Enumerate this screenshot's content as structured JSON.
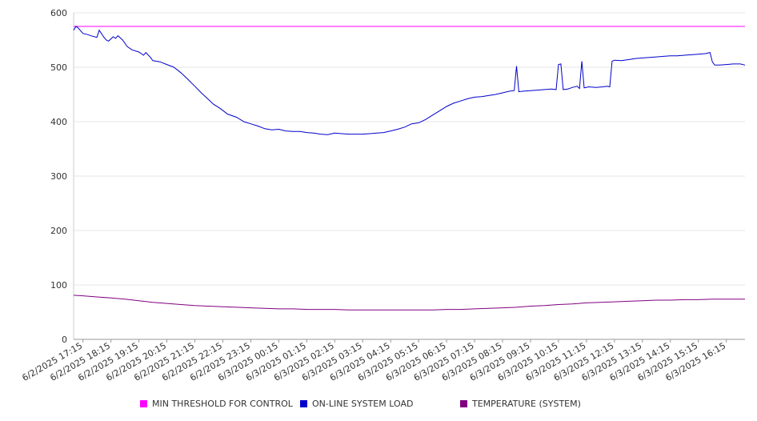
{
  "chart_data": {
    "type": "line",
    "ylim": [
      0,
      600
    ],
    "yticks": [
      0,
      100,
      200,
      300,
      400,
      500,
      600
    ],
    "grid": true,
    "legend_position": "bottom",
    "xticks": [
      "6/2/2025 17:15",
      "6/2/2025 18:15",
      "6/2/2025 19:15",
      "6/2/2025 20:15",
      "6/2/2025 21:15",
      "6/2/2025 22:15",
      "6/2/2025 23:15",
      "6/3/2025 00:15",
      "6/3/2025 01:15",
      "6/3/2025 02:15",
      "6/3/2025 03:15",
      "6/3/2025 04:15",
      "6/3/2025 05:15",
      "6/3/2025 06:15",
      "6/3/2025 07:15",
      "6/3/2025 08:15",
      "6/3/2025 09:15",
      "6/3/2025 10:15",
      "6/3/2025 11:15",
      "6/3/2025 12:15",
      "6/3/2025 13:15",
      "6/3/2025 14:15",
      "6/3/2025 15:15",
      "6/3/2025 16:15"
    ],
    "series": [
      {
        "name": "MIN THRESHOLD FOR CONTROL",
        "color": "#ff00ff",
        "points": [
          [
            "6/2/2025 16:55",
            575
          ],
          [
            "6/3/2025 16:55",
            575
          ]
        ]
      },
      {
        "name": "ON-LINE SYSTEM LOAD",
        "color": "#0000cc",
        "points": [
          [
            "6/2/2025 16:55",
            568
          ],
          [
            "6/2/2025 17:00",
            575
          ],
          [
            "6/2/2025 17:05",
            572
          ],
          [
            "6/2/2025 17:10",
            567
          ],
          [
            "6/2/2025 17:15",
            562
          ],
          [
            "6/2/2025 17:25",
            560
          ],
          [
            "6/2/2025 17:35",
            557
          ],
          [
            "6/2/2025 17:45",
            555
          ],
          [
            "6/2/2025 17:50",
            568
          ],
          [
            "6/2/2025 18:00",
            555
          ],
          [
            "6/2/2025 18:05",
            550
          ],
          [
            "6/2/2025 18:10",
            548
          ],
          [
            "6/2/2025 18:15",
            552
          ],
          [
            "6/2/2025 18:20",
            556
          ],
          [
            "6/2/2025 18:25",
            553
          ],
          [
            "6/2/2025 18:30",
            558
          ],
          [
            "6/2/2025 18:40",
            550
          ],
          [
            "6/2/2025 18:50",
            538
          ],
          [
            "6/2/2025 19:00",
            532
          ],
          [
            "6/2/2025 19:15",
            528
          ],
          [
            "6/2/2025 19:25",
            522
          ],
          [
            "6/2/2025 19:30",
            527
          ],
          [
            "6/2/2025 19:40",
            518
          ],
          [
            "6/2/2025 19:45",
            512
          ],
          [
            "6/2/2025 20:00",
            510
          ],
          [
            "6/2/2025 20:15",
            505
          ],
          [
            "6/2/2025 20:30",
            500
          ],
          [
            "6/2/2025 20:45",
            490
          ],
          [
            "6/2/2025 21:00",
            478
          ],
          [
            "6/2/2025 21:15",
            465
          ],
          [
            "6/2/2025 21:30",
            452
          ],
          [
            "6/2/2025 21:45",
            440
          ],
          [
            "6/2/2025 21:55",
            432
          ],
          [
            "6/2/2025 22:10",
            424
          ],
          [
            "6/2/2025 22:25",
            414
          ],
          [
            "6/2/2025 22:45",
            408
          ],
          [
            "6/2/2025 23:00",
            400
          ],
          [
            "6/2/2025 23:15",
            396
          ],
          [
            "6/2/2025 23:30",
            392
          ],
          [
            "6/2/2025 23:45",
            387
          ],
          [
            "6/3/2025 00:00",
            385
          ],
          [
            "6/3/2025 00:15",
            386
          ],
          [
            "6/3/2025 00:30",
            383
          ],
          [
            "6/3/2025 00:45",
            382
          ],
          [
            "6/3/2025 01:00",
            382
          ],
          [
            "6/3/2025 01:15",
            380
          ],
          [
            "6/3/2025 01:30",
            379
          ],
          [
            "6/3/2025 01:45",
            377
          ],
          [
            "6/3/2025 02:00",
            376
          ],
          [
            "6/3/2025 02:15",
            379
          ],
          [
            "6/3/2025 02:30",
            378
          ],
          [
            "6/3/2025 02:45",
            377
          ],
          [
            "6/3/2025 03:00",
            377
          ],
          [
            "6/3/2025 03:15",
            377
          ],
          [
            "6/3/2025 03:30",
            378
          ],
          [
            "6/3/2025 03:45",
            379
          ],
          [
            "6/3/2025 04:00",
            380
          ],
          [
            "6/3/2025 04:15",
            383
          ],
          [
            "6/3/2025 04:30",
            386
          ],
          [
            "6/3/2025 04:45",
            390
          ],
          [
            "6/3/2025 05:00",
            396
          ],
          [
            "6/3/2025 05:15",
            398
          ],
          [
            "6/3/2025 05:30",
            404
          ],
          [
            "6/3/2025 05:45",
            412
          ],
          [
            "6/3/2025 06:00",
            420
          ],
          [
            "6/3/2025 06:15",
            428
          ],
          [
            "6/3/2025 06:30",
            434
          ],
          [
            "6/3/2025 06:45",
            438
          ],
          [
            "6/3/2025 07:00",
            442
          ],
          [
            "6/3/2025 07:15",
            445
          ],
          [
            "6/3/2025 07:30",
            446
          ],
          [
            "6/3/2025 07:45",
            448
          ],
          [
            "6/3/2025 08:00",
            450
          ],
          [
            "6/3/2025 08:15",
            453
          ],
          [
            "6/3/2025 08:30",
            456
          ],
          [
            "6/3/2025 08:40",
            457
          ],
          [
            "6/3/2025 08:45",
            502
          ],
          [
            "6/3/2025 08:50",
            455
          ],
          [
            "6/3/2025 09:00",
            456
          ],
          [
            "6/3/2025 09:15",
            457
          ],
          [
            "6/3/2025 09:30",
            458
          ],
          [
            "6/3/2025 09:45",
            459
          ],
          [
            "6/3/2025 10:00",
            460
          ],
          [
            "6/3/2025 10:10",
            459
          ],
          [
            "6/3/2025 10:15",
            505
          ],
          [
            "6/3/2025 10:20",
            506
          ],
          [
            "6/3/2025 10:25",
            459
          ],
          [
            "6/3/2025 10:35",
            460
          ],
          [
            "6/3/2025 10:45",
            463
          ],
          [
            "6/3/2025 10:55",
            465
          ],
          [
            "6/3/2025 11:00",
            461
          ],
          [
            "6/3/2025 11:05",
            511
          ],
          [
            "6/3/2025 11:10",
            462
          ],
          [
            "6/3/2025 11:20",
            464
          ],
          [
            "6/3/2025 11:35",
            463
          ],
          [
            "6/3/2025 11:50",
            464
          ],
          [
            "6/3/2025 12:00",
            465
          ],
          [
            "6/3/2025 12:05",
            464
          ],
          [
            "6/3/2025 12:10",
            511
          ],
          [
            "6/3/2025 12:15",
            513
          ],
          [
            "6/3/2025 12:30",
            512
          ],
          [
            "6/3/2025 12:45",
            514
          ],
          [
            "6/3/2025 13:00",
            516
          ],
          [
            "6/3/2025 13:15",
            517
          ],
          [
            "6/3/2025 13:30",
            518
          ],
          [
            "6/3/2025 13:45",
            519
          ],
          [
            "6/3/2025 14:00",
            520
          ],
          [
            "6/3/2025 14:15",
            521
          ],
          [
            "6/3/2025 14:30",
            521
          ],
          [
            "6/3/2025 14:45",
            522
          ],
          [
            "6/3/2025 15:00",
            523
          ],
          [
            "6/3/2025 15:15",
            524
          ],
          [
            "6/3/2025 15:30",
            525
          ],
          [
            "6/3/2025 15:40",
            527
          ],
          [
            "6/3/2025 15:45",
            510
          ],
          [
            "6/3/2025 15:50",
            504
          ],
          [
            "6/3/2025 16:00",
            504
          ],
          [
            "6/3/2025 16:15",
            505
          ],
          [
            "6/3/2025 16:30",
            506
          ],
          [
            "6/3/2025 16:45",
            506
          ],
          [
            "6/3/2025 16:55",
            504
          ]
        ]
      },
      {
        "name": "TEMPERATURE (SYSTEM)",
        "color": "#800080",
        "points": [
          [
            "6/2/2025 16:55",
            81
          ],
          [
            "6/2/2025 17:15",
            80
          ],
          [
            "6/2/2025 17:45",
            78
          ],
          [
            "6/2/2025 18:15",
            76
          ],
          [
            "6/2/2025 18:45",
            74
          ],
          [
            "6/2/2025 19:15",
            71
          ],
          [
            "6/2/2025 19:45",
            68
          ],
          [
            "6/2/2025 20:15",
            66
          ],
          [
            "6/2/2025 20:45",
            64
          ],
          [
            "6/2/2025 21:15",
            62
          ],
          [
            "6/2/2025 21:45",
            61
          ],
          [
            "6/2/2025 22:15",
            60
          ],
          [
            "6/2/2025 22:45",
            59
          ],
          [
            "6/2/2025 23:15",
            58
          ],
          [
            "6/2/2025 23:45",
            57
          ],
          [
            "6/3/2025 00:15",
            56
          ],
          [
            "6/3/2025 00:45",
            56
          ],
          [
            "6/3/2025 01:15",
            55
          ],
          [
            "6/3/2025 01:45",
            55
          ],
          [
            "6/3/2025 02:15",
            55
          ],
          [
            "6/3/2025 02:45",
            54
          ],
          [
            "6/3/2025 03:15",
            54
          ],
          [
            "6/3/2025 03:45",
            54
          ],
          [
            "6/3/2025 04:15",
            54
          ],
          [
            "6/3/2025 04:45",
            54
          ],
          [
            "6/3/2025 05:15",
            54
          ],
          [
            "6/3/2025 05:45",
            54
          ],
          [
            "6/3/2025 06:15",
            55
          ],
          [
            "6/3/2025 06:45",
            55
          ],
          [
            "6/3/2025 07:15",
            56
          ],
          [
            "6/3/2025 07:45",
            57
          ],
          [
            "6/3/2025 08:15",
            58
          ],
          [
            "6/3/2025 08:45",
            59
          ],
          [
            "6/3/2025 09:15",
            61
          ],
          [
            "6/3/2025 09:45",
            62
          ],
          [
            "6/3/2025 10:15",
            64
          ],
          [
            "6/3/2025 10:45",
            65
          ],
          [
            "6/3/2025 11:15",
            67
          ],
          [
            "6/3/2025 11:45",
            68
          ],
          [
            "6/3/2025 12:15",
            69
          ],
          [
            "6/3/2025 12:45",
            70
          ],
          [
            "6/3/2025 13:15",
            71
          ],
          [
            "6/3/2025 13:45",
            72
          ],
          [
            "6/3/2025 14:15",
            72
          ],
          [
            "6/3/2025 14:45",
            73
          ],
          [
            "6/3/2025 15:15",
            73
          ],
          [
            "6/3/2025 15:45",
            74
          ],
          [
            "6/3/2025 16:15",
            74
          ],
          [
            "6/3/2025 16:55",
            74
          ]
        ]
      }
    ]
  }
}
